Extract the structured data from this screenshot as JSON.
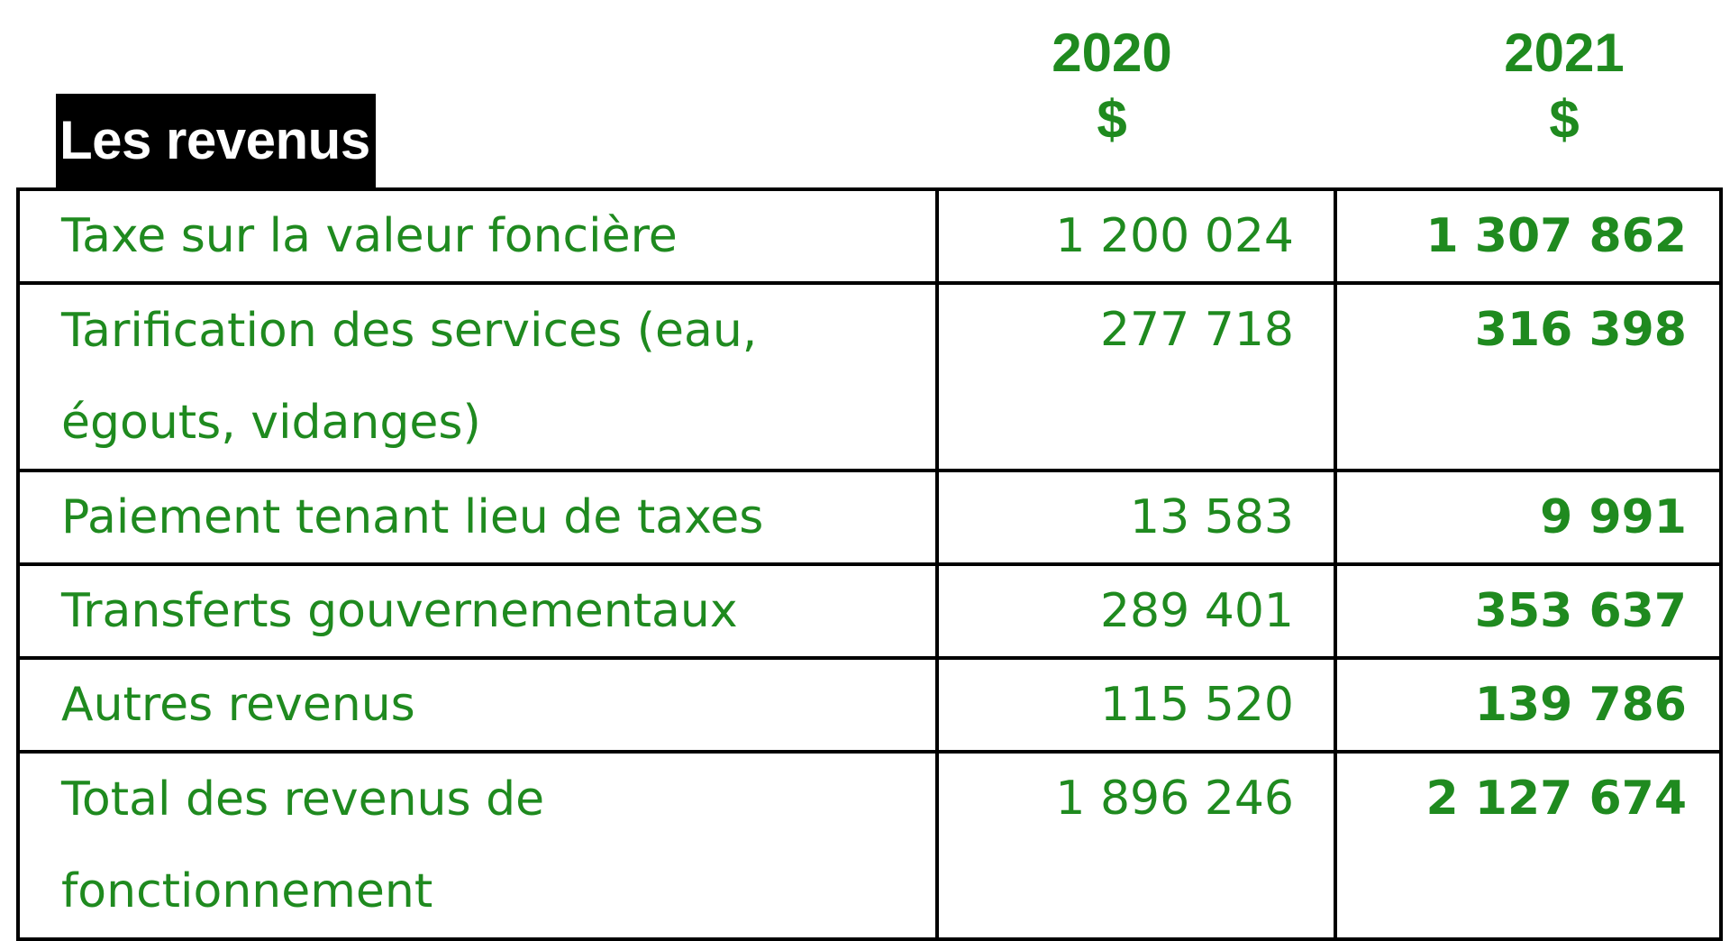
{
  "title": "Les revenus",
  "columns": [
    {
      "year": "2020",
      "unit": "$"
    },
    {
      "year": "2021",
      "unit": "$"
    }
  ],
  "rows": [
    {
      "label_line1": "Taxe sur la valeur foncière",
      "label_line2": "",
      "v2020": "1 200 024",
      "v2021": "1 307 862"
    },
    {
      "label_line1": "Tarification des services (eau,",
      "label_line2": "égouts, vidanges)",
      "v2020": "277 718",
      "v2021": "316 398"
    },
    {
      "label_line1": "Paiement tenant lieu de taxes",
      "label_line2": "",
      "v2020": "13 583",
      "v2021": "9 991"
    },
    {
      "label_line1": "Transferts gouvernementaux",
      "label_line2": "",
      "v2020": "289 401",
      "v2021": "353 637"
    },
    {
      "label_line1": "Autres revenus",
      "label_line2": "",
      "v2020": "115 520",
      "v2021": "139 786"
    },
    {
      "label_line1": "Total des revenus de",
      "label_line2": "fonctionnement",
      "v2020": "1 896 246",
      "v2021": "2 127 674"
    }
  ],
  "colors": {
    "text_green": "#1f8a1f",
    "border": "#000000",
    "title_bg": "#000000",
    "title_text": "#ffffff"
  }
}
